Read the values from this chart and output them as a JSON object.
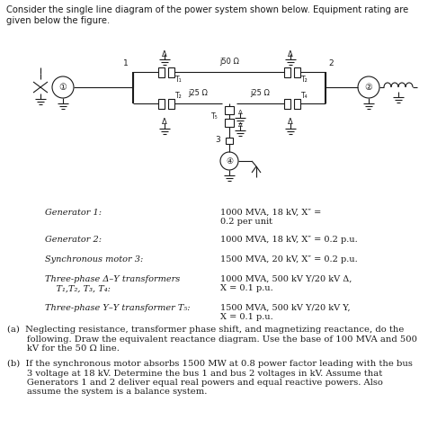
{
  "title_text": "Consider the single line diagram of the power system shown below. Equipment rating are\ngiven below the figure.",
  "background_color": "#ffffff",
  "text_color": "#000000",
  "fig_width": 4.96,
  "fig_height": 4.87,
  "generator1_label": "Generator 1:",
  "generator1_value": "1000 MVA, 18 kV, X″ =\n0.2 per unit",
  "generator2_label": "Generator 2:",
  "generator2_value": "1000 MVA, 18 kV, X″ = 0.2 p.u.",
  "motor3_label": "Synchronous motor 3:",
  "motor3_value": "1500 MVA, 20 kV, X″ = 0.2 p.u.",
  "transformer_ay_label": "Three-phase Δ–Y transformers\n    T₁,T₂, T₃, T₄:",
  "transformer_ay_value": "1000 MVA, 500 kV Y/20 kV Δ,\nX = 0.1 p.u.",
  "transformer_yy_label": "Three-phase Y–Y transformer T₅:",
  "transformer_yy_value": "1500 MVA, 500 kV Y/20 kV Y,\nX = 0.1 p.u.",
  "line_top_label": "j50 Ω",
  "line_bot_left_label": "j25 Ω",
  "line_bot_right_label": "j25 Ω"
}
